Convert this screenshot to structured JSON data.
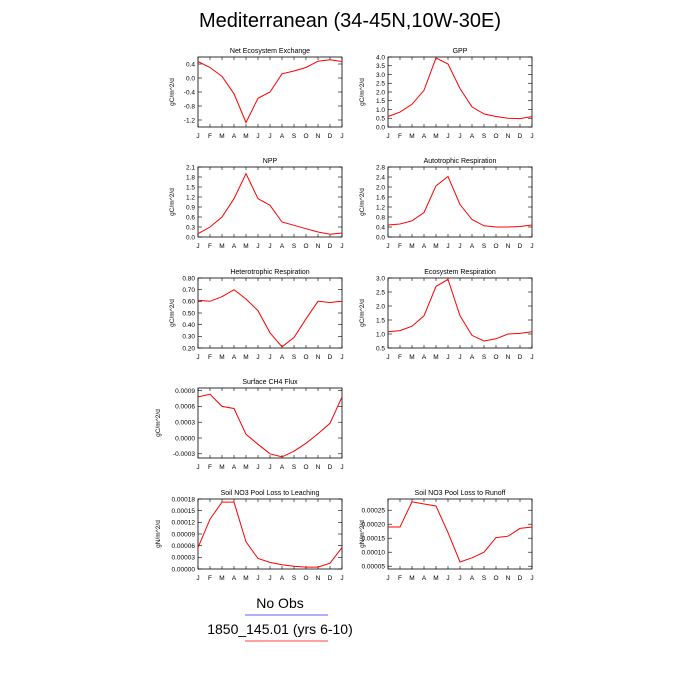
{
  "figure": {
    "title": "Mediterranean (34-45N,10W-30E)",
    "legend": [
      {
        "label": "No Obs",
        "color": "#2d2dff"
      },
      {
        "label": "1850_145.01 (yrs 6-10)",
        "color": "#ff0000"
      }
    ]
  },
  "months": [
    "J",
    "F",
    "M",
    "A",
    "M",
    "J",
    "J",
    "A",
    "S",
    "O",
    "N",
    "D",
    "J"
  ],
  "chart_data": [
    {
      "type": "line",
      "title": "Net Ecosystem Exchange",
      "ylabel": "gC/m^2/d",
      "ylim": [
        -1.4,
        0.6
      ],
      "yticks": [
        0.4,
        0.0,
        -0.4,
        -0.8,
        -1.2
      ],
      "ytick_labels": [
        "0.4",
        "0.0",
        "-0.4",
        "-0.8",
        "-1.2"
      ],
      "x": [
        "J",
        "F",
        "M",
        "A",
        "M",
        "J",
        "J",
        "A",
        "S",
        "O",
        "N",
        "D",
        "J"
      ],
      "series": [
        {
          "color": "#ff0000",
          "values": [
            0.47,
            0.3,
            0.05,
            -0.45,
            -1.27,
            -0.58,
            -0.4,
            0.12,
            0.2,
            0.3,
            0.48,
            0.52,
            0.47
          ]
        }
      ]
    },
    {
      "type": "line",
      "title": "GPP",
      "ylabel": "gC/m^2/d",
      "ylim": [
        0,
        4.0
      ],
      "yticks": [
        0.0,
        0.5,
        1.0,
        1.5,
        2.0,
        2.5,
        3.0,
        3.5,
        4.0
      ],
      "ytick_labels": [
        "0.0",
        "0.5",
        "1.0",
        "1.5",
        "2.0",
        "2.5",
        "3.0",
        "3.5",
        "4.0"
      ],
      "x": [
        "J",
        "F",
        "M",
        "A",
        "M",
        "J",
        "J",
        "A",
        "S",
        "O",
        "N",
        "D",
        "J"
      ],
      "series": [
        {
          "color": "#ff0000",
          "values": [
            0.6,
            0.85,
            1.3,
            2.1,
            3.95,
            3.6,
            2.2,
            1.15,
            0.75,
            0.6,
            0.5,
            0.48,
            0.6
          ]
        }
      ]
    },
    {
      "type": "line",
      "title": "NPP",
      "ylabel": "gC/m^2/d",
      "ylim": [
        0,
        2.1
      ],
      "yticks": [
        0.0,
        0.3,
        0.6,
        0.9,
        1.2,
        1.5,
        1.8,
        2.1
      ],
      "ytick_labels": [
        "0.0",
        "0.3",
        "0.6",
        "0.9",
        "1.2",
        "1.5",
        "1.8",
        "2.1"
      ],
      "x": [
        "J",
        "F",
        "M",
        "A",
        "M",
        "J",
        "J",
        "A",
        "S",
        "O",
        "N",
        "D",
        "J"
      ],
      "series": [
        {
          "color": "#ff0000",
          "values": [
            0.1,
            0.3,
            0.6,
            1.15,
            1.9,
            1.15,
            0.95,
            0.45,
            0.35,
            0.25,
            0.15,
            0.08,
            0.12
          ]
        }
      ]
    },
    {
      "type": "line",
      "title": "Autotrophic Respiration",
      "ylabel": "gC/m^2/d",
      "ylim": [
        0,
        2.8
      ],
      "yticks": [
        0.0,
        0.4,
        0.8,
        1.2,
        1.6,
        2.0,
        2.4,
        2.8
      ],
      "ytick_labels": [
        "0.0",
        "0.4",
        "0.8",
        "1.2",
        "1.6",
        "2.0",
        "2.4",
        "2.8"
      ],
      "x": [
        "J",
        "F",
        "M",
        "A",
        "M",
        "J",
        "J",
        "A",
        "S",
        "O",
        "N",
        "D",
        "J"
      ],
      "series": [
        {
          "color": "#ff0000",
          "values": [
            0.48,
            0.52,
            0.65,
            0.98,
            2.05,
            2.42,
            1.3,
            0.7,
            0.45,
            0.4,
            0.4,
            0.42,
            0.48
          ]
        }
      ]
    },
    {
      "type": "line",
      "title": "Heterotrophic Respiration",
      "ylabel": "gC/m^2/d",
      "ylim": [
        0.2,
        0.8
      ],
      "yticks": [
        0.2,
        0.3,
        0.4,
        0.5,
        0.6,
        0.7,
        0.8
      ],
      "ytick_labels": [
        "0.20",
        "0.30",
        "0.40",
        "0.50",
        "0.60",
        "0.70",
        "0.80"
      ],
      "x": [
        "J",
        "F",
        "M",
        "A",
        "M",
        "J",
        "J",
        "A",
        "S",
        "O",
        "N",
        "D",
        "J"
      ],
      "series": [
        {
          "color": "#ff0000",
          "values": [
            0.61,
            0.6,
            0.64,
            0.7,
            0.62,
            0.52,
            0.33,
            0.21,
            0.29,
            0.45,
            0.6,
            0.59,
            0.6
          ]
        }
      ]
    },
    {
      "type": "line",
      "title": "Ecosystem Respiration",
      "ylabel": "gC/m^2/d",
      "ylim": [
        0.5,
        3.0
      ],
      "yticks": [
        0.5,
        1.0,
        1.5,
        2.0,
        2.5,
        3.0
      ],
      "ytick_labels": [
        "0.5",
        "1.0",
        "1.5",
        "2.0",
        "2.5",
        "3.0"
      ],
      "x": [
        "J",
        "F",
        "M",
        "A",
        "M",
        "J",
        "J",
        "A",
        "S",
        "O",
        "N",
        "D",
        "J"
      ],
      "series": [
        {
          "color": "#ff0000",
          "values": [
            1.08,
            1.12,
            1.28,
            1.65,
            2.7,
            2.95,
            1.65,
            0.95,
            0.75,
            0.83,
            1.0,
            1.02,
            1.08
          ]
        }
      ]
    },
    {
      "type": "line",
      "title": "Surface CH4 Flux",
      "ylabel": "gC/m^2/d",
      "ylim": [
        -0.00038,
        0.00095
      ],
      "yticks": [
        -0.0003,
        0.0,
        0.0003,
        0.0006,
        0.0009
      ],
      "ytick_labels": [
        "-0.0003",
        "0.0000",
        "0.0003",
        "0.0006",
        "0.0009"
      ],
      "x": [
        "J",
        "F",
        "M",
        "A",
        "M",
        "J",
        "J",
        "A",
        "S",
        "O",
        "N",
        "D",
        "J"
      ],
      "series": [
        {
          "color": "#ff0000",
          "values": [
            0.00078,
            0.00083,
            0.0006,
            0.00056,
            7e-05,
            -0.00012,
            -0.0003,
            -0.00036,
            -0.00025,
            -0.0001,
            8e-05,
            0.00028,
            0.00078
          ]
        }
      ]
    },
    {
      "type": "line",
      "title": "Soil NO3 Pool Loss to Leaching",
      "ylabel": "gN/m^2/d",
      "ylim": [
        0,
        0.00018
      ],
      "yticks": [
        0.0,
        3e-05,
        6e-05,
        9e-05,
        0.00012,
        0.00015,
        0.00018
      ],
      "ytick_labels": [
        "0.00000",
        "0.00003",
        "0.00006",
        "0.00009",
        "0.00012",
        "0.00015",
        "0.00018"
      ],
      "x": [
        "J",
        "F",
        "M",
        "A",
        "M",
        "J",
        "J",
        "A",
        "S",
        "O",
        "N",
        "D",
        "J"
      ],
      "series": [
        {
          "color": "#ff0000",
          "values": [
            5.5e-05,
            0.000128,
            0.000172,
            0.000172,
            7e-05,
            2.7e-05,
            1.7e-05,
            1.1e-05,
            7e-06,
            5e-06,
            5e-06,
            1.5e-05,
            5.5e-05
          ]
        }
      ]
    },
    {
      "type": "line",
      "title": "Soil NO3 Pool Loss to Runoff",
      "ylabel": "gN/m^2/d",
      "ylim": [
        4e-05,
        0.00029
      ],
      "yticks": [
        5e-05,
        0.0001,
        0.00015,
        0.0002,
        0.00025
      ],
      "ytick_labels": [
        "0.00005",
        "0.00010",
        "0.00015",
        "0.00020",
        "0.00025"
      ],
      "x": [
        "J",
        "F",
        "M",
        "A",
        "M",
        "J",
        "J",
        "A",
        "S",
        "O",
        "N",
        "D",
        "J"
      ],
      "series": [
        {
          "color": "#ff0000",
          "values": [
            0.00019,
            0.00019,
            0.00028,
            0.000272,
            0.000265,
            0.00017,
            6.5e-05,
            8e-05,
            0.0001,
            0.000152,
            0.000157,
            0.000185,
            0.00019
          ]
        }
      ]
    }
  ]
}
